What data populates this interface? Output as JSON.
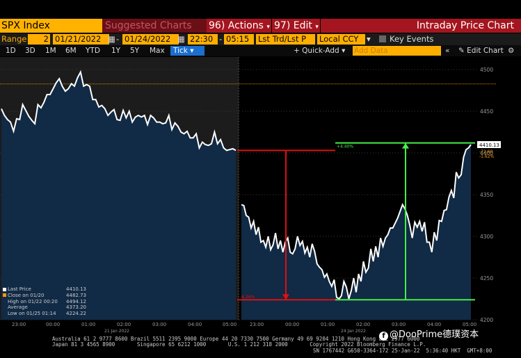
{
  "header": {
    "ticker": "SPX Index",
    "suggested": "Suggested Charts",
    "actions_num": "96",
    "actions": "Actions",
    "edit_num": "97",
    "edit": "Edit",
    "title": "Intraday Price Chart"
  },
  "controls": {
    "range_label": "Range",
    "range_val": "2",
    "date_from": "01/21/2022",
    "date_to": "01/24/2022",
    "time_from": "22:30",
    "time_to": "05:15",
    "field": "Lst Trd/Lst P",
    "ccy": "Local CCY",
    "key_events": "Key Events"
  },
  "toolbar": {
    "periods": [
      "1D",
      "3D",
      "1M",
      "6M",
      "YTD",
      "1Y",
      "5Y",
      "Max"
    ],
    "active": "Tick",
    "quick_add": "Quick-Add",
    "add_data": "Add Data",
    "edit_chart": "Edit Chart"
  },
  "legend": [
    {
      "label": "Last Price",
      "value": "4410.13",
      "color": "#ffffff"
    },
    {
      "label": "Close on 01/20",
      "value": "4482.73",
      "color": "#ff9900"
    },
    {
      "label": "High on 01/22 00:20",
      "value": "4494.12",
      "color": ""
    },
    {
      "label": "Average",
      "value": "4373.20",
      "color": ""
    },
    {
      "label": "Low on 01/25 01:14",
      "value": "4224.22",
      "color": ""
    }
  ],
  "chart_data": {
    "type": "area",
    "y_ticks": [
      4200,
      4250,
      4300,
      4350,
      4400,
      4450,
      4500
    ],
    "ylim": [
      4200,
      4515
    ],
    "x_ticks": [
      "23:00",
      "00:00",
      "01:00",
      "02:00",
      "03:00",
      "04:00",
      "05:00",
      "23:00",
      "00:00",
      "01:00",
      "02:00",
      "03:00",
      "04:00",
      "05:00"
    ],
    "date_labels": [
      "21 Jan 2022",
      "24 Jan 2022"
    ],
    "prev_close": 4482.73,
    "last_price_label": "4410.13",
    "change_labels": [
      "-72.60",
      "-1.62%"
    ],
    "drop_label": "-4.26%",
    "rise_label": "+4.40%",
    "series": [
      {
        "values": [
          4453,
          4445,
          4440,
          4437,
          4426,
          4441,
          4440,
          4458,
          4451,
          4444,
          4439,
          4435,
          4458,
          4454,
          4461,
          4470,
          4470,
          4477,
          4484,
          4489,
          4480,
          4474,
          4477,
          4483,
          4480,
          4490,
          4497,
          4480,
          4482,
          4480,
          4464,
          4464,
          4455,
          4457,
          4453,
          4445,
          4449,
          4452,
          4440,
          4439,
          4451,
          4442,
          4450,
          4437,
          4443,
          4445,
          4443,
          4445,
          4434,
          4445,
          4442,
          4437,
          4437,
          4435,
          4436,
          4445,
          4428,
          4436,
          4432,
          4425,
          4423,
          4426,
          4418,
          4418,
          4423,
          4406,
          4413,
          4410,
          4409,
          4411,
          4425,
          4411,
          4416,
          4406,
          4403,
          4404,
          4405,
          4403,
          4338,
          4337,
          4325,
          4323,
          4310,
          4318,
          4302,
          4311,
          4293,
          4295,
          4287,
          4300,
          4284,
          4290,
          4304,
          4285,
          4295,
          4281,
          4293,
          4298,
          4281,
          4279,
          4285,
          4300,
          4289,
          4294,
          4280,
          4287,
          4275,
          4291,
          4282,
          4267,
          4263,
          4260,
          4251,
          4255,
          4246,
          4240,
          4248,
          4227,
          4225,
          4229,
          4246,
          4239,
          4225,
          4235,
          4250,
          4233,
          4255,
          4246,
          4270,
          4257,
          4262,
          4285,
          4270,
          4288,
          4275,
          4298,
          4288,
          4298,
          4302,
          4310,
          4310,
          4316,
          4322,
          4330,
          4338,
          4333,
          4325,
          4313,
          4298,
          4317,
          4311,
          4318,
          4306,
          4317,
          4293,
          4293,
          4281,
          4305,
          4295,
          4319,
          4318,
          4331,
          4332,
          4347,
          4355,
          4346,
          4377,
          4370,
          4374,
          4395,
          4404,
          4406,
          4410
        ]
      }
    ]
  },
  "footer": {
    "line1": "Australia 61 2 9777 8600 Brazil 5511 2395 9000 Europe 44 20 7330 7500 Germany 49 69 9204 1210 Hong Kong 852 2977 6000",
    "line2": "Japan 81 3 4565 8900       Singapore 65 6212 1000       U.S. 1 212 318 2000       Copyright 2022 Bloomberg Finance L.P.",
    "line3": "SN 1767442 G650-3364-172 25-Jan-22  5:36:40 HKT  GMT+8:00"
  },
  "watermark": "@DooPrime德璞资本"
}
